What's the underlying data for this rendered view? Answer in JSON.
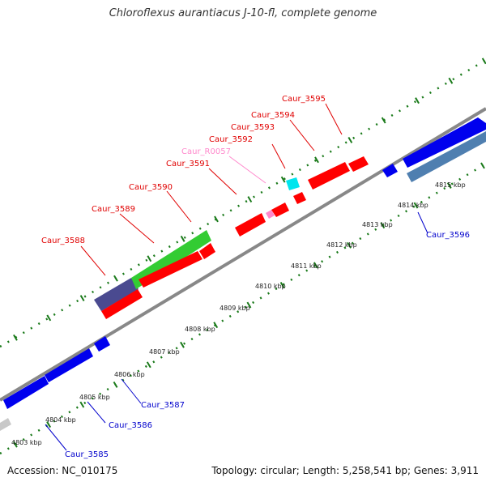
{
  "header": {
    "title": "Chloroflexus aurantiacus J-10-fl, complete genome"
  },
  "footer": {
    "accession": "Accession: NC_010175",
    "summary": "Topology: circular; Length: 5,258,541 bp; Genes: 3,911"
  },
  "colors": {
    "forward_label": "#e00000",
    "reverse_label": "#0000cc",
    "rna_label": "#ff88cc",
    "forward_gene": "#ff0000",
    "reverse_gene": "#0000ee",
    "backbone": "#888888",
    "ticks": "#1a7a1a",
    "cyan_gene": "#00e5ee",
    "pink_gene": "#ff88cc",
    "green_gene": "#33cc33",
    "indigo_gene": "#4a4a90",
    "steel_gene": "#4f7fb0",
    "grey_gene": "#c8c8c8"
  },
  "kbp_labels": [
    "4803 kbp",
    "4804 kbp",
    "4805 kbp",
    "4806 kbp",
    "4807 kbp",
    "4808 kbp",
    "4809 kbp",
    "4810 kbp",
    "4811 kbp",
    "4812 kbp",
    "4813 kbp",
    "4814 kbp",
    "4815 kbp"
  ],
  "gene_labels": {
    "caur_3588": "Caur_3588",
    "caur_3589": "Caur_3589",
    "caur_3590": "Caur_3590",
    "caur_3591": "Caur_3591",
    "caur_r0057": "Caur_R0057",
    "caur_3592": "Caur_3592",
    "caur_3593": "Caur_3593",
    "caur_3594": "Caur_3594",
    "caur_3595": "Caur_3595",
    "caur_3596": "Caur_3596",
    "caur_3587": "Caur_3587",
    "caur_3586": "Caur_3586",
    "caur_3585": "Caur_3585"
  }
}
